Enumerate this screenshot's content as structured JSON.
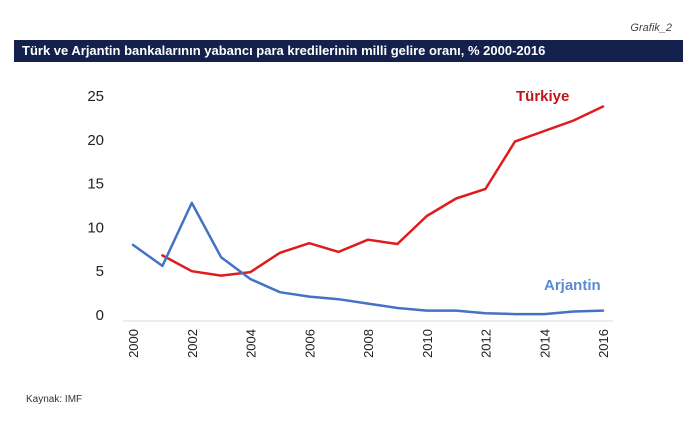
{
  "header": {
    "grafik_label": "Grafik_2",
    "title": "Türk ve Arjantin bankalarının yabancı para kredilerinin milli gelire oranı, % 2000-2016"
  },
  "footer": {
    "source": "Kaynak: IMF"
  },
  "chart_data": {
    "type": "line",
    "title": "Türk ve Arjantin bankalarının yabancı para kredilerinin milli gelire oranı, % 2000-2016",
    "xlabel": "",
    "ylabel": "",
    "xlim": [
      2000,
      2016
    ],
    "ylim": [
      0,
      25
    ],
    "yticks": [
      "0",
      "5",
      "10",
      "15",
      "20",
      "25"
    ],
    "xticks": [
      "2000",
      "2002",
      "2004",
      "2006",
      "2008",
      "2010",
      "2012",
      "2014",
      "2016"
    ],
    "grid": false,
    "legend": "inline labels",
    "series": [
      {
        "name": "Türkiye",
        "color": "#e01b1b",
        "label_color": "#c0161b",
        "x": [
          2001,
          2002,
          2003,
          2004,
          2005,
          2006,
          2007,
          2008,
          2009,
          2010,
          2011,
          2012,
          2013,
          2014,
          2015,
          2016
        ],
        "values": [
          6.8,
          5.0,
          4.5,
          4.9,
          7.1,
          8.2,
          7.2,
          8.6,
          8.1,
          11.3,
          13.3,
          14.4,
          19.8,
          21.0,
          22.2,
          23.8
        ]
      },
      {
        "name": "Arjantin",
        "color": "#4472c4",
        "label_color": "#5b8bd0",
        "x": [
          2000,
          2001,
          2002,
          2003,
          2004,
          2005,
          2006,
          2007,
          2008,
          2009,
          2010,
          2011,
          2012,
          2013,
          2014,
          2015,
          2016
        ],
        "values": [
          8.0,
          5.6,
          12.8,
          6.6,
          4.1,
          2.6,
          2.1,
          1.8,
          1.3,
          0.8,
          0.5,
          0.5,
          0.2,
          0.1,
          0.1,
          0.4,
          0.5
        ]
      }
    ]
  }
}
